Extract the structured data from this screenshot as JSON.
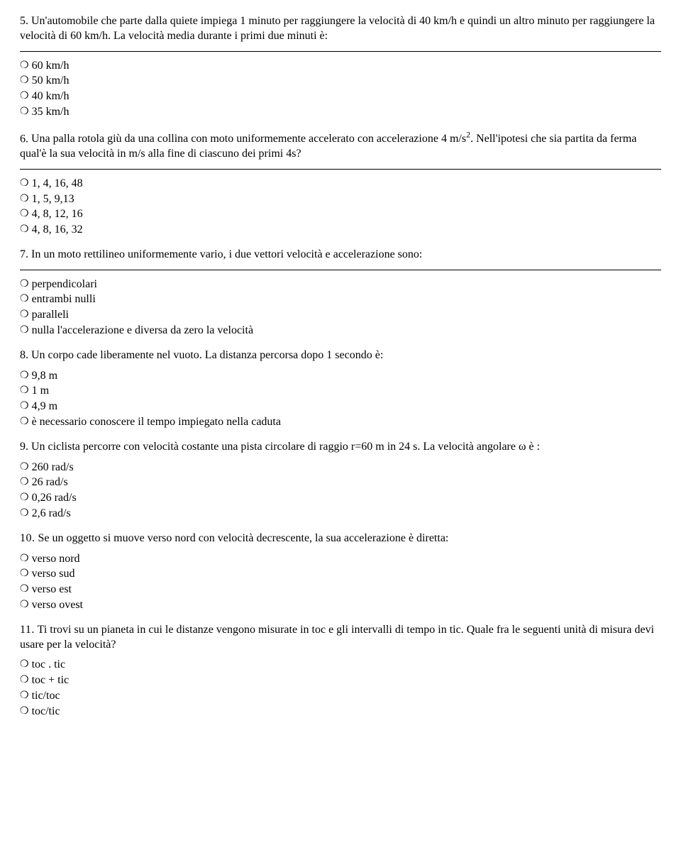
{
  "questions": [
    {
      "num": "5.",
      "text": "Un'automobile che parte dalla quiete impiega 1 minuto per raggiungere la velocità di 40 km/h e quindi un altro minuto per raggiungere la velocità di 60 km/h. La velocità media durante i primi due minuti è:",
      "hr_before_options": true,
      "options": [
        "60 km/h",
        "50 km/h",
        "40 km/h",
        "35 km/h"
      ]
    },
    {
      "num": "6.",
      "text_html": "Una palla rotola giù da una collina con moto uniformemente accelerato con accelerazione 4 m/s<sup>2</sup>. Nell'ipotesi che sia partita da ferma qual'è la sua velocità  in m/s alla fine di ciascuno dei primi 4s?",
      "hr_before_options": true,
      "options": [
        "1, 4, 16, 48",
        "1, 5, 9,13",
        "4, 8, 12, 16",
        "4, 8, 16, 32"
      ]
    },
    {
      "num": "7.",
      "text": "In un moto rettilineo uniformemente vario, i due vettori velocità e accelerazione sono:",
      "hr_before_options": true,
      "options": [
        "perpendicolari",
        "entrambi nulli",
        "paralleli",
        "nulla l'accelerazione e  diversa da zero la velocità"
      ]
    },
    {
      "num": "8.",
      "text": "Un corpo cade liberamente nel vuoto. La distanza percorsa dopo 1 secondo è:",
      "hr_before_options": false,
      "options": [
        "9,8 m",
        "1 m",
        "4,9 m",
        "è necessario conoscere il tempo impiegato nella caduta"
      ]
    },
    {
      "num": "9.",
      "text": "Un ciclista percorre con velocità costante una pista circolare di raggio r=60 m in 24 s. La velocità angolare ω è :",
      "hr_before_options": false,
      "options": [
        "260 rad/s",
        "26 rad/s",
        "0,26 rad/s",
        "2,6 rad/s"
      ]
    },
    {
      "num": "10.",
      "text": "Se un oggetto si muove verso nord con velocità decrescente, la sua accelerazione è diretta:",
      "hr_before_options": false,
      "options": [
        "verso nord",
        "verso sud",
        "verso est",
        "verso ovest"
      ]
    },
    {
      "num": "11.",
      "text": "Ti trovi su un pianeta in cui le distanze vengono misurate in toc e gli intervalli di tempo in tic. Quale fra le seguenti unità di misura devi usare per la velocità?",
      "hr_before_options": false,
      "options": [
        "toc . tic",
        "toc + tic",
        "tic/toc",
        "toc/tic"
      ]
    }
  ],
  "radio_glyph": "❍"
}
